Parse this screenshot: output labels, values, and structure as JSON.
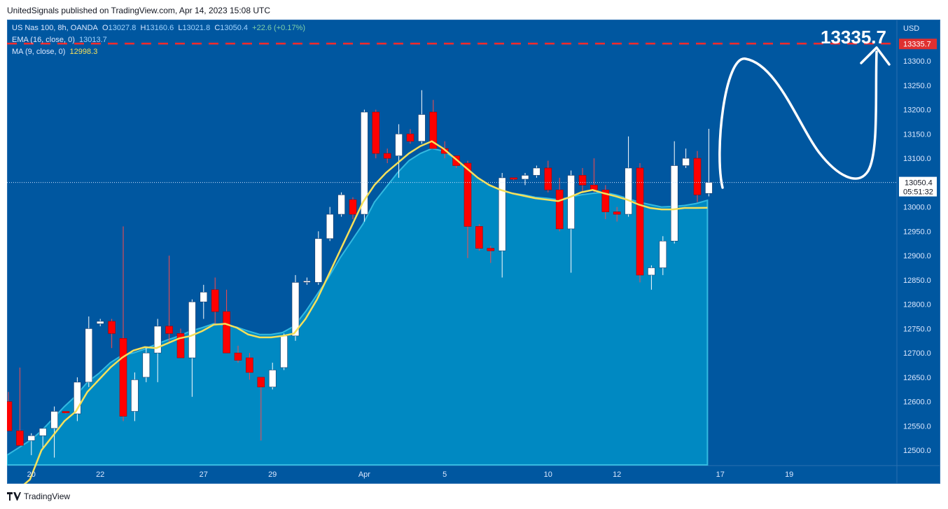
{
  "header": {
    "publisher_line": "UnitedSignals published on TradingView.com, Apr 14, 2023 15:08 UTC"
  },
  "legend": {
    "symbol": "US Nas 100, 8h, OANDA",
    "o_label": "O",
    "o_value": "13027.8",
    "h_label": "H",
    "h_value": "13160.6",
    "l_label": "L",
    "l_value": "13021.8",
    "c_label": "C",
    "c_value": "13050.4",
    "change": "+22.6 (+0.17%)",
    "ema_label": "EMA (16, close, 0)",
    "ema_value": "13013.7",
    "ma_label": "MA (9, close, 0)",
    "ma_value": "12998.3"
  },
  "annotation": {
    "target_text": "13335.7"
  },
  "price_axis": {
    "currency": "USD",
    "target_tag": "13335.7",
    "last_price_tag": "13050.4",
    "countdown_tag": "05:51:32"
  },
  "footer": {
    "brand": "TradingView"
  },
  "colors": {
    "background": "#0057a0",
    "up_candle": "#ffffff",
    "down_candle": "#ff0000",
    "ema_line": "#f6e05a",
    "area_fill": "#0089c2",
    "target_line": "#ff2b2b",
    "arrow": "#ffffff"
  },
  "chart_data": {
    "type": "candlestick",
    "symbol": "US Nas 100",
    "timeframe": "8h",
    "y_range": [
      12470,
      13385
    ],
    "y_ticks": [
      12500,
      12550,
      12600,
      12650,
      12700,
      12750,
      12800,
      12850,
      12900,
      12950,
      13000,
      13050,
      13100,
      13150,
      13200,
      13250,
      13300
    ],
    "x_ticks": [
      {
        "label": "20",
        "index": 2
      },
      {
        "label": "22",
        "index": 8
      },
      {
        "label": "27",
        "index": 17
      },
      {
        "label": "29",
        "index": 23
      },
      {
        "label": "Apr",
        "index": 31
      },
      {
        "label": "5",
        "index": 38
      },
      {
        "label": "10",
        "index": 47
      },
      {
        "label": "12",
        "index": 53
      },
      {
        "label": "17",
        "index": 62
      },
      {
        "label": "19",
        "index": 68
      }
    ],
    "target_price": 13335.7,
    "last_price": 13050.4,
    "candles": [
      {
        "o": 12600,
        "h": 12620,
        "l": 12540,
        "c": 12540
      },
      {
        "o": 12540,
        "h": 12670,
        "l": 12510,
        "c": 12510
      },
      {
        "o": 12520,
        "h": 12535,
        "l": 12490,
        "c": 12530
      },
      {
        "o": 12530,
        "h": 12545,
        "l": 12505,
        "c": 12545
      },
      {
        "o": 12545,
        "h": 12590,
        "l": 12485,
        "c": 12580
      },
      {
        "o": 12580,
        "h": 12580,
        "l": 12575,
        "c": 12577
      },
      {
        "o": 12575,
        "h": 12650,
        "l": 12560,
        "c": 12640
      },
      {
        "o": 12640,
        "h": 12775,
        "l": 12630,
        "c": 12750
      },
      {
        "o": 12760,
        "h": 12770,
        "l": 12755,
        "c": 12765
      },
      {
        "o": 12765,
        "h": 12770,
        "l": 12710,
        "c": 12740
      },
      {
        "o": 12730,
        "h": 12960,
        "l": 12560,
        "c": 12570
      },
      {
        "o": 12580,
        "h": 12660,
        "l": 12560,
        "c": 12645
      },
      {
        "o": 12650,
        "h": 12710,
        "l": 12640,
        "c": 12700
      },
      {
        "o": 12700,
        "h": 12770,
        "l": 12640,
        "c": 12755
      },
      {
        "o": 12755,
        "h": 12900,
        "l": 12720,
        "c": 12740
      },
      {
        "o": 12740,
        "h": 12750,
        "l": 12690,
        "c": 12690
      },
      {
        "o": 12690,
        "h": 12810,
        "l": 12610,
        "c": 12805
      },
      {
        "o": 12805,
        "h": 12840,
        "l": 12770,
        "c": 12825
      },
      {
        "o": 12830,
        "h": 12855,
        "l": 12760,
        "c": 12785
      },
      {
        "o": 12785,
        "h": 12830,
        "l": 12700,
        "c": 12700
      },
      {
        "o": 12700,
        "h": 12715,
        "l": 12680,
        "c": 12685
      },
      {
        "o": 12690,
        "h": 12700,
        "l": 12645,
        "c": 12660
      },
      {
        "o": 12650,
        "h": 12650,
        "l": 12520,
        "c": 12630
      },
      {
        "o": 12630,
        "h": 12680,
        "l": 12625,
        "c": 12665
      },
      {
        "o": 12670,
        "h": 12740,
        "l": 12665,
        "c": 12735
      },
      {
        "o": 12735,
        "h": 12860,
        "l": 12725,
        "c": 12845
      },
      {
        "o": 12845,
        "h": 12855,
        "l": 12840,
        "c": 12848
      },
      {
        "o": 12845,
        "h": 12950,
        "l": 12840,
        "c": 12935
      },
      {
        "o": 12935,
        "h": 13000,
        "l": 12930,
        "c": 12985
      },
      {
        "o": 12985,
        "h": 13030,
        "l": 12980,
        "c": 13025
      },
      {
        "o": 13015,
        "h": 13020,
        "l": 12975,
        "c": 12985
      },
      {
        "o": 12985,
        "h": 13200,
        "l": 12970,
        "c": 13195
      },
      {
        "o": 13195,
        "h": 13200,
        "l": 13100,
        "c": 13110
      },
      {
        "o": 13110,
        "h": 13120,
        "l": 13090,
        "c": 13100
      },
      {
        "o": 13105,
        "h": 13170,
        "l": 13060,
        "c": 13150
      },
      {
        "o": 13150,
        "h": 13160,
        "l": 13130,
        "c": 13135
      },
      {
        "o": 13135,
        "h": 13240,
        "l": 13130,
        "c": 13190
      },
      {
        "o": 13195,
        "h": 13220,
        "l": 13120,
        "c": 13120
      },
      {
        "o": 13120,
        "h": 13135,
        "l": 13100,
        "c": 13110
      },
      {
        "o": 13105,
        "h": 13105,
        "l": 13080,
        "c": 13085
      },
      {
        "o": 13090,
        "h": 13095,
        "l": 12895,
        "c": 12960
      },
      {
        "o": 12960,
        "h": 12965,
        "l": 12910,
        "c": 12915
      },
      {
        "o": 12915,
        "h": 12920,
        "l": 12885,
        "c": 12910
      },
      {
        "o": 12910,
        "h": 13070,
        "l": 12855,
        "c": 13060
      },
      {
        "o": 13060,
        "h": 13060,
        "l": 13055,
        "c": 13057
      },
      {
        "o": 13057,
        "h": 13070,
        "l": 13045,
        "c": 13065
      },
      {
        "o": 13065,
        "h": 13085,
        "l": 13060,
        "c": 13080
      },
      {
        "o": 13080,
        "h": 13095,
        "l": 13030,
        "c": 13035
      },
      {
        "o": 13035,
        "h": 13060,
        "l": 12950,
        "c": 12955
      },
      {
        "o": 12955,
        "h": 13075,
        "l": 12865,
        "c": 13065
      },
      {
        "o": 13065,
        "h": 13080,
        "l": 13030,
        "c": 13045
      },
      {
        "o": 13045,
        "h": 13100,
        "l": 13030,
        "c": 13035
      },
      {
        "o": 13035,
        "h": 13045,
        "l": 12975,
        "c": 12990
      },
      {
        "o": 12990,
        "h": 13000,
        "l": 12970,
        "c": 12985
      },
      {
        "o": 12985,
        "h": 13145,
        "l": 12980,
        "c": 13080
      },
      {
        "o": 13080,
        "h": 13090,
        "l": 12845,
        "c": 12860
      },
      {
        "o": 12860,
        "h": 12880,
        "l": 12830,
        "c": 12875
      },
      {
        "o": 12875,
        "h": 12940,
        "l": 12860,
        "c": 12930
      },
      {
        "o": 12930,
        "h": 13135,
        "l": 12925,
        "c": 13085
      },
      {
        "o": 13085,
        "h": 13120,
        "l": 13080,
        "c": 13100
      },
      {
        "o": 13100,
        "h": 13115,
        "l": 13010,
        "c": 13025
      },
      {
        "o": 13027.8,
        "h": 13160.6,
        "l": 13021.8,
        "c": 13050.4
      }
    ],
    "ema_16": [
      12490,
      12505,
      12520,
      12540,
      12565,
      12590,
      12612,
      12640,
      12658,
      12680,
      12695,
      12700,
      12708,
      12718,
      12727,
      12735,
      12745,
      12752,
      12760,
      12757,
      12753,
      12745,
      12738,
      12738,
      12742,
      12755,
      12785,
      12820,
      12855,
      12895,
      12930,
      12965,
      13010,
      13040,
      13070,
      13095,
      13110,
      13120,
      13115,
      13100,
      13080,
      13060,
      13045,
      13035,
      13028,
      13025,
      13020,
      13018,
      13015,
      13020,
      13025,
      13028,
      13030,
      13025,
      13018,
      13010,
      13005,
      13000,
      13001,
      13003,
      13007,
      13013.7
    ],
    "ma_9": [
      12400,
      12420,
      12440,
      12500,
      12530,
      12560,
      12580,
      12620,
      12645,
      12670,
      12690,
      12705,
      12712,
      12710,
      12720,
      12730,
      12735,
      12745,
      12758,
      12760,
      12752,
      12738,
      12732,
      12732,
      12735,
      12740,
      12770,
      12810,
      12860,
      12910,
      12960,
      13010,
      13045,
      13070,
      13090,
      13110,
      13125,
      13135,
      13120,
      13100,
      13080,
      13060,
      13045,
      13035,
      13028,
      13023,
      13018,
      13015,
      13012,
      13020,
      13030,
      13035,
      13028,
      13022,
      13015,
      13005,
      12998,
      12995,
      12995,
      12998,
      12998,
      12998.3
    ]
  }
}
